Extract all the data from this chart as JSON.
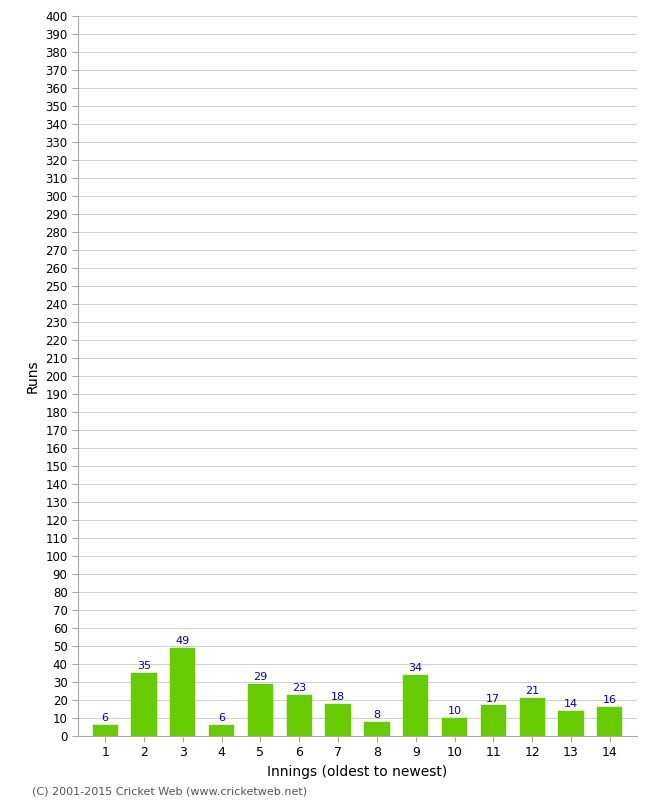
{
  "innings": [
    1,
    2,
    3,
    4,
    5,
    6,
    7,
    8,
    9,
    10,
    11,
    12,
    13,
    14
  ],
  "runs": [
    6,
    35,
    49,
    6,
    29,
    23,
    18,
    8,
    34,
    10,
    17,
    21,
    14,
    16
  ],
  "bar_color": "#66cc00",
  "bar_edge_color": "#66cc00",
  "label_color": "#0000cc",
  "xlabel": "Innings (oldest to newest)",
  "ylabel": "Runs",
  "ylim": [
    0,
    400
  ],
  "background_color": "#ffffff",
  "grid_color": "#d0d0d0",
  "footer": "(C) 2001-2015 Cricket Web (www.cricketweb.net)"
}
